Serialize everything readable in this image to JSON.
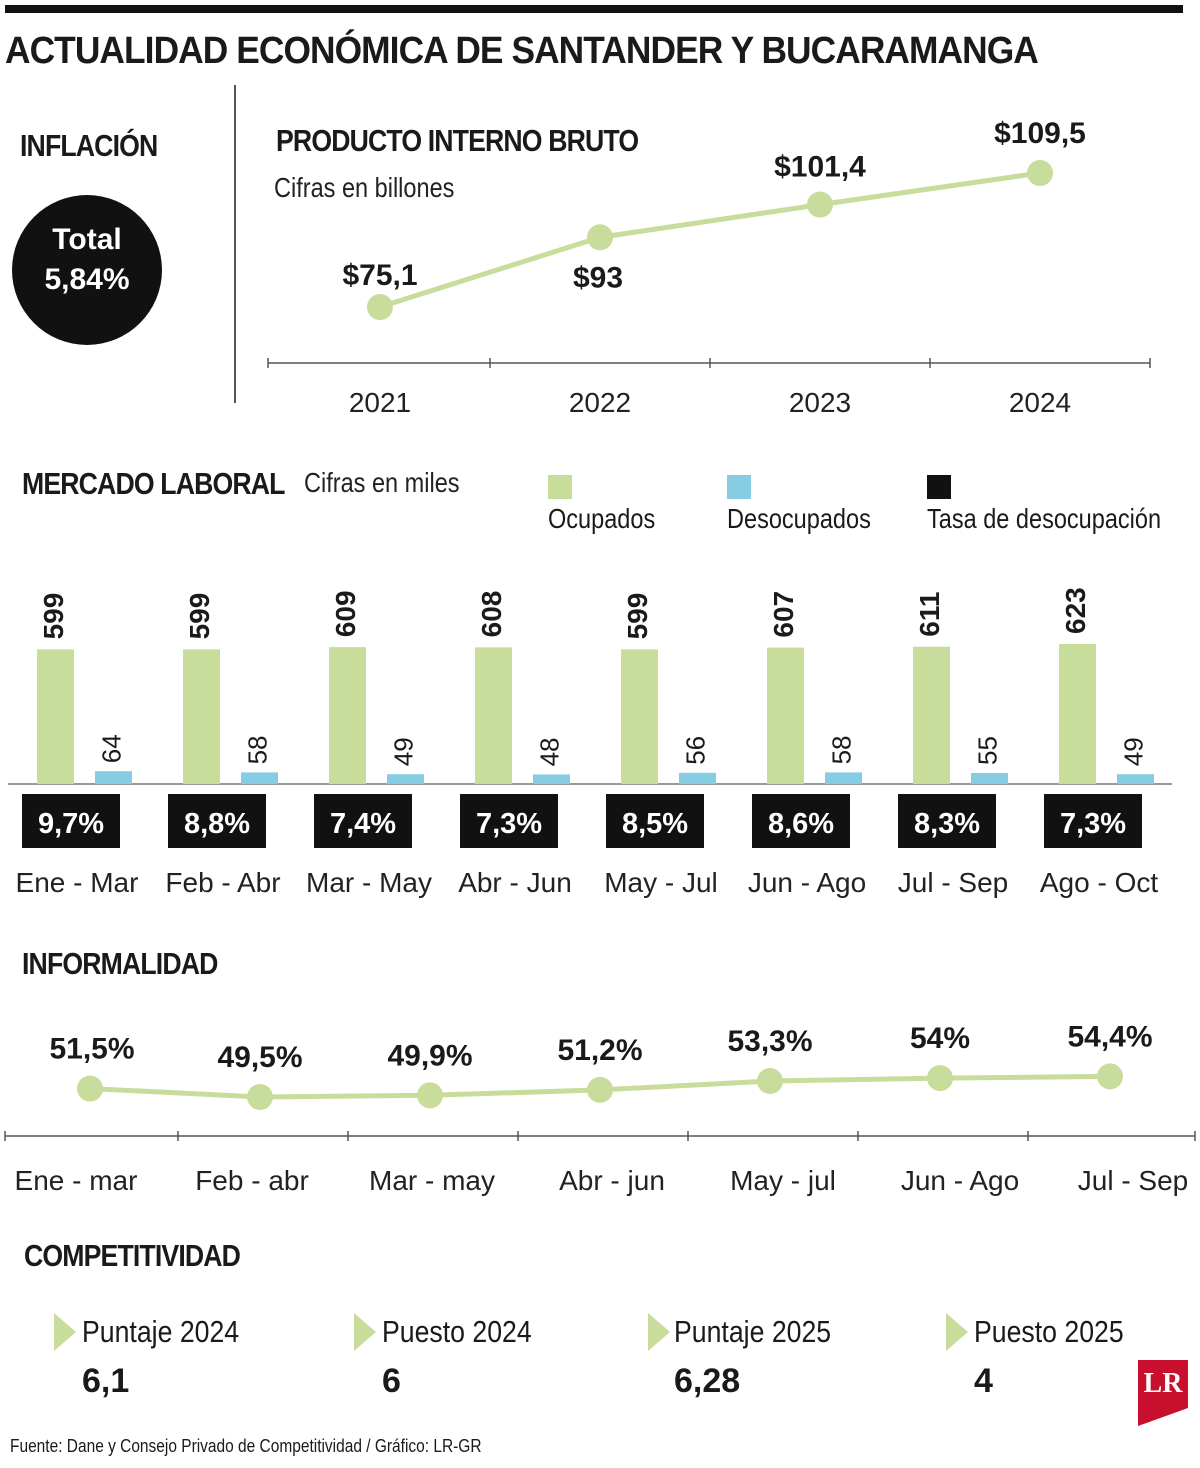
{
  "title": "ACTUALIDAD ECONÓMICA DE SANTANDER Y BUCARAMANGA",
  "colors": {
    "green": "#c8dc9c",
    "blue": "#86cce3",
    "black": "#111111",
    "brand_red": "#c8102e"
  },
  "inflation": {
    "heading": "INFLACIÓN",
    "label": "Total",
    "value": "5,84%"
  },
  "chart_data": [
    {
      "type": "line",
      "id": "pib",
      "title": "PRODUCTO INTERNO BRUTO",
      "subtitle": "Cifras en billones",
      "categories": [
        "2021",
        "2022",
        "2023",
        "2024"
      ],
      "values": [
        75.1,
        93,
        101.4,
        109.5
      ],
      "labels": [
        "$75,1",
        "$93",
        "$101,4",
        "$109,5"
      ],
      "ylim": [
        60,
        115
      ]
    },
    {
      "type": "bar",
      "id": "mercado_laboral",
      "title": "MERCADO LABORAL",
      "subtitle": "Cifras en miles",
      "legend": [
        "Ocupados",
        "Desocupados",
        "Tasa de desocupación"
      ],
      "categories": [
        "Ene - Mar",
        "Feb - Abr",
        "Mar - May",
        "Abr - Jun",
        "May - Jul",
        "Jun - Ago",
        "Jul - Sep",
        "Ago - Oct"
      ],
      "series": [
        {
          "name": "Ocupados",
          "values": [
            599,
            599,
            609,
            608,
            599,
            607,
            611,
            623
          ]
        },
        {
          "name": "Desocupados",
          "values": [
            64,
            58,
            49,
            48,
            56,
            58,
            55,
            49
          ]
        }
      ],
      "rates": [
        "9,7%",
        "8,8%",
        "7,4%",
        "7,3%",
        "8,5%",
        "8,6%",
        "8,3%",
        "7,3%"
      ]
    },
    {
      "type": "line",
      "id": "informalidad",
      "title": "INFORMALIDAD",
      "categories": [
        "Ene - mar",
        "Feb - abr",
        "Mar - may",
        "Abr - jun",
        "May - jul",
        "Jun - Ago",
        "Jul - Sep"
      ],
      "values": [
        51.5,
        49.5,
        49.9,
        51.2,
        53.3,
        54,
        54.4
      ],
      "labels": [
        "51,5%",
        "49,5%",
        "49,9%",
        "51,2%",
        "53,3%",
        "54%",
        "54,4%"
      ],
      "ylim": [
        40,
        60
      ]
    }
  ],
  "competitividad": {
    "heading": "COMPETITIVIDAD",
    "items": [
      {
        "label": "Puntaje 2024",
        "value": "6,1"
      },
      {
        "label": "Puesto 2024",
        "value": "6"
      },
      {
        "label": "Puntaje 2025",
        "value": "6,28"
      },
      {
        "label": "Puesto 2025",
        "value": "4"
      }
    ]
  },
  "footer": "Fuente: Dane y Consejo Privado de Competitividad / Gráfico: LR-GR",
  "logo_text": "LR"
}
